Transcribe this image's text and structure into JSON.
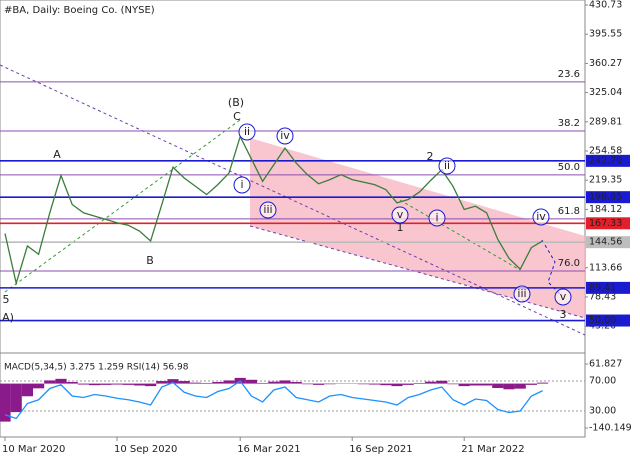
{
  "header": {
    "title": "#BA, Daily:  Boeing Co. (NYSE)"
  },
  "chart_data": [
    {
      "type": "line",
      "name": "Price",
      "color": "#3a7d3a",
      "categories": [
        "10 Mar 2020",
        null,
        null,
        null,
        null,
        null,
        null,
        null,
        null,
        null,
        "10 Sep 2020",
        null,
        null,
        null,
        null,
        null,
        null,
        null,
        null,
        null,
        null,
        "16 Mar 2021",
        null,
        null,
        null,
        null,
        null,
        null,
        null,
        null,
        null,
        "16 Sep 2021",
        null,
        null,
        null,
        null,
        null,
        null,
        null,
        null,
        null,
        "21 Mar 2022",
        null,
        null,
        null,
        null,
        null,
        null,
        null
      ],
      "values": [
        155,
        95,
        140,
        130,
        180,
        225,
        190,
        180,
        176,
        172,
        168,
        165,
        158,
        146,
        190,
        235,
        222,
        212,
        202,
        214,
        228,
        272,
        245,
        218,
        238,
        258,
        240,
        226,
        215,
        220,
        226,
        220,
        217,
        214,
        208,
        192,
        196,
        205,
        219,
        232,
        212,
        184,
        188,
        180,
        148,
        125,
        112,
        138,
        146
      ],
      "ylim": [
        26.5,
        436.8
      ],
      "yticks": [
        430.73,
        395.55,
        360.27,
        325.04,
        289.81,
        254.58,
        219.35,
        184.12,
        113.66,
        78.43,
        {
          "value": 43.2,
          "label": "43.20"
        }
      ],
      "levels": [
        {
          "value": 242.7,
          "label": "242.70",
          "color": "#1a1ad0"
        },
        {
          "value": 198.85,
          "label": "198.85",
          "color": "#1a1ad0"
        },
        {
          "value": 167.33,
          "label": "167.33",
          "color": "#e0202a"
        },
        {
          "value": 144.56,
          "label": "144.56",
          "color": "#bdbdbd"
        },
        {
          "value": 89.41,
          "label": "89.41",
          "color": "#1a1ad0"
        },
        {
          "value": 50,
          "label": "50.00",
          "color": "#1a1ad0"
        }
      ],
      "fib_levels": [
        {
          "name": "23.6",
          "value": 338
        },
        {
          "name": "38.2",
          "value": 278.7
        },
        {
          "name": "50.0",
          "value": 225.7
        },
        {
          "name": "61.8",
          "value": 172.6
        },
        {
          "name": "76.0",
          "value": 109.8
        }
      ],
      "annotations": [
        "(B)",
        "C",
        "A",
        "B",
        "5",
        "A)",
        "ii",
        "iv",
        "i",
        "iii",
        "v",
        "1",
        "i",
        "2",
        "ii",
        "iv",
        "iii",
        "v",
        "3"
      ]
    },
    {
      "type": "indicator",
      "title": "MACD(5,34,5) 3.275 1.259 RSI(14) 56.98",
      "series": [
        {
          "name": "MACD",
          "color": "#8b1a8b",
          "values": [
            -120,
            -90,
            -40,
            -15,
            10,
            15,
            5,
            -3,
            -5,
            -4,
            -3,
            -4,
            -6,
            -8,
            8,
            14,
            8,
            3,
            2,
            5,
            10,
            18,
            12,
            2,
            6,
            10,
            5,
            -2,
            -4,
            -2,
            1,
            -1,
            -2,
            -3,
            -5,
            -8,
            -4,
            2,
            6,
            9,
            -2,
            -8,
            -6,
            -6,
            -14,
            -18,
            -16,
            -4,
            3
          ]
        },
        {
          "name": "RSI",
          "color": "#1e90ff",
          "axis": "y2",
          "values": [
            25,
            20,
            40,
            45,
            60,
            65,
            50,
            48,
            52,
            50,
            47,
            45,
            42,
            38,
            62,
            68,
            55,
            50,
            48,
            56,
            60,
            70,
            50,
            42,
            58,
            62,
            48,
            45,
            42,
            50,
            52,
            48,
            46,
            44,
            42,
            38,
            48,
            52,
            58,
            62,
            45,
            38,
            46,
            44,
            32,
            28,
            30,
            50,
            57
          ]
        }
      ],
      "ylim": [
        -140.149,
        61.827
      ],
      "yticks": [
        61.827,
        -140.149
      ],
      "y2lim": [
        0,
        100
      ],
      "y2ticks": [
        {
          "value": 70,
          "label": "70.00"
        },
        {
          "value": 30,
          "label": "30.00"
        }
      ]
    }
  ]
}
